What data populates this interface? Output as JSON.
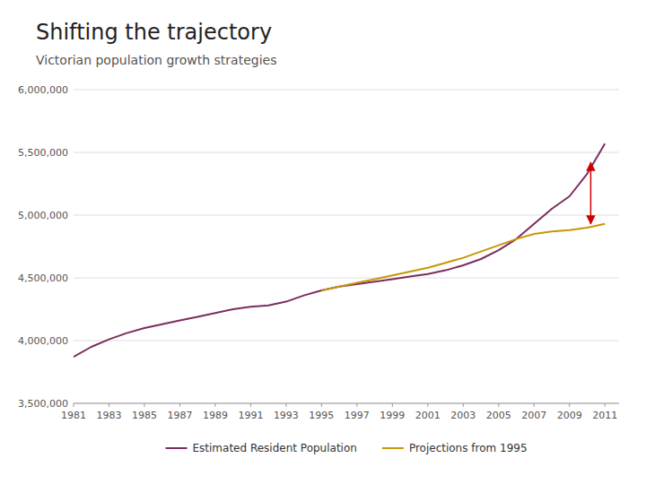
{
  "chart_data": {
    "type": "line",
    "title": "Shifting the trajectory",
    "subtitle": "Victorian population growth strategies",
    "x": [
      1981,
      1982,
      1983,
      1984,
      1985,
      1986,
      1987,
      1988,
      1989,
      1990,
      1991,
      1992,
      1993,
      1994,
      1995,
      1996,
      1997,
      1998,
      1999,
      2000,
      2001,
      2002,
      2003,
      2004,
      2005,
      2006,
      2007,
      2008,
      2009,
      2010,
      2011
    ],
    "series": [
      {
        "name": "Estimated Resident Population",
        "color": "#7b2d5e",
        "values": [
          3870000,
          3950000,
          4010000,
          4060000,
          4100000,
          4130000,
          4160000,
          4190000,
          4220000,
          4250000,
          4270000,
          4280000,
          4310000,
          4360000,
          4400000,
          4430000,
          4450000,
          4470000,
          4490000,
          4510000,
          4530000,
          4560000,
          4600000,
          4650000,
          4720000,
          4810000,
          4930000,
          5050000,
          5150000,
          5330000,
          5570000
        ]
      },
      {
        "name": "Projections from 1995",
        "color": "#c8960a",
        "values": [
          null,
          null,
          null,
          null,
          null,
          null,
          null,
          null,
          null,
          null,
          null,
          null,
          null,
          null,
          4400000,
          4430000,
          4460000,
          4490000,
          4520000,
          4550000,
          4580000,
          4620000,
          4660000,
          4710000,
          4760000,
          4810000,
          4850000,
          4870000,
          4880000,
          4900000,
          4930000
        ]
      }
    ],
    "arrow": {
      "x": 2010.2,
      "y_top": 5420000,
      "y_bottom": 4930000,
      "color": "#cc0000"
    },
    "xlim": [
      1981,
      2011.8
    ],
    "xticks": [
      1981,
      1983,
      1985,
      1987,
      1989,
      1991,
      1993,
      1995,
      1997,
      1999,
      2001,
      2003,
      2005,
      2007,
      2009,
      2011
    ],
    "ylim": [
      3500000,
      6000000
    ],
    "yticks": [
      {
        "value": 3500000,
        "label": "3,500,000"
      },
      {
        "value": 4000000,
        "label": "4,000,000"
      },
      {
        "value": 4500000,
        "label": "4,500,000"
      },
      {
        "value": 5000000,
        "label": "5,000,000"
      },
      {
        "value": 5500000,
        "label": "5,500,000"
      },
      {
        "value": 6000000,
        "label": "6,000,000"
      }
    ],
    "grid": true,
    "legend": "bottom"
  }
}
